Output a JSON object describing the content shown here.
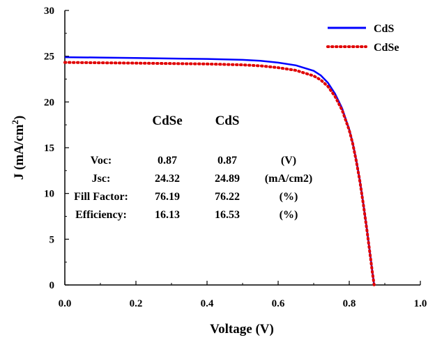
{
  "chart_data": {
    "type": "line",
    "title": "",
    "xlabel": "Voltage (V)",
    "ylabel": "J (mA/cm",
    "ylabel_sup": "2",
    "ylabel_tail": ")",
    "xlim": [
      0.0,
      1.0
    ],
    "ylim": [
      0,
      30
    ],
    "x_ticks": [
      "0.0",
      "0.2",
      "0.4",
      "0.6",
      "0.8",
      "1.0"
    ],
    "y_ticks": [
      "0",
      "5",
      "10",
      "15",
      "20",
      "25",
      "30"
    ],
    "grid": false,
    "legend_position": "top-right",
    "series": [
      {
        "name": "CdS",
        "color": "#0000ff",
        "style": "solid",
        "x": [
          0.0,
          0.1,
          0.2,
          0.3,
          0.4,
          0.5,
          0.55,
          0.6,
          0.65,
          0.7,
          0.72,
          0.74,
          0.76,
          0.78,
          0.8,
          0.81,
          0.82,
          0.83,
          0.84,
          0.85,
          0.86,
          0.865,
          0.87
        ],
        "y": [
          24.89,
          24.85,
          24.8,
          24.75,
          24.7,
          24.6,
          24.5,
          24.3,
          24.0,
          23.4,
          22.9,
          22.1,
          20.9,
          19.3,
          17.0,
          15.5,
          13.6,
          11.4,
          8.8,
          6.0,
          3.0,
          1.5,
          0.0
        ]
      },
      {
        "name": "CdSe",
        "color": "#e00000",
        "style": "dotted",
        "x": [
          0.0,
          0.1,
          0.2,
          0.3,
          0.4,
          0.5,
          0.55,
          0.6,
          0.65,
          0.7,
          0.72,
          0.74,
          0.76,
          0.78,
          0.8,
          0.81,
          0.82,
          0.83,
          0.84,
          0.85,
          0.86,
          0.865,
          0.87
        ],
        "y": [
          24.32,
          24.28,
          24.24,
          24.2,
          24.15,
          24.05,
          23.95,
          23.75,
          23.45,
          22.85,
          22.4,
          21.7,
          20.6,
          19.1,
          16.9,
          15.4,
          13.5,
          11.3,
          8.7,
          5.9,
          2.9,
          1.4,
          0.0
        ]
      }
    ],
    "table": {
      "headers": [
        "CdSe",
        "CdS"
      ],
      "rows": [
        {
          "label": "Voc:",
          "cdse": "0.87",
          "cds": "0.87",
          "unit": "(V)"
        },
        {
          "label": "Jsc:",
          "cdse": "24.32",
          "cds": "24.89",
          "unit": "(mA/cm2)"
        },
        {
          "label": "Fill Factor:",
          "cdse": "76.19",
          "cds": "76.22",
          "unit": "(%)"
        },
        {
          "label": "Efficiency:",
          "cdse": "16.13",
          "cds": "16.53",
          "unit": "(%)"
        }
      ]
    }
  }
}
